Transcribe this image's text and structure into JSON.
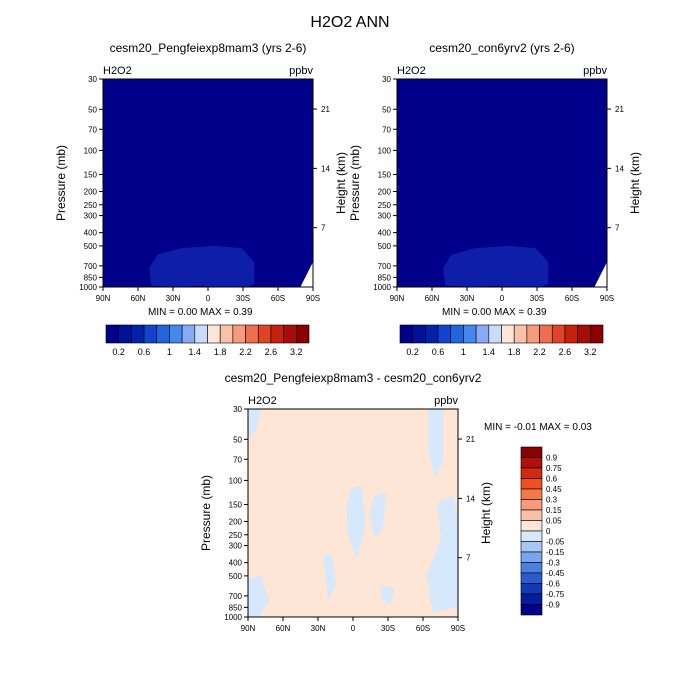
{
  "title": "H2O2 ANN",
  "chart_data": [
    {
      "type": "heatmap",
      "title": "cesm20_Pengfeiexp8mam3 (yrs 2-6)",
      "variable": "H2O2",
      "units": "ppbv",
      "ylabel": "Pressure (mb)",
      "ylabel_right": "Height (km)",
      "x_ticks": [
        "90N",
        "60N",
        "30N",
        "0",
        "30S",
        "60S",
        "90S"
      ],
      "y_ticks": [
        "30",
        "50",
        "70",
        "100",
        "150",
        "200",
        "250",
        "300",
        "400",
        "500",
        "700",
        "850",
        "1000"
      ],
      "y_ticks_right": [
        "21",
        "14",
        "7"
      ],
      "min": "0.00",
      "max": "0.39",
      "min_label": "MIN =",
      "max_label": "MAX =",
      "background_color": "#00008b",
      "feature_color": "#0d1fa8",
      "colorbar": {
        "orientation": "horizontal",
        "colors": [
          "#00008b",
          "#001199",
          "#0022aa",
          "#1144cc",
          "#2266dd",
          "#4488ee",
          "#88aaf4",
          "#c6dcf9",
          "#fde6d6",
          "#f9c2a6",
          "#f49c7c",
          "#ee6e50",
          "#e04426",
          "#c8200e",
          "#a80c06",
          "#8b0000"
        ],
        "labels": [
          "0.2",
          "0.6",
          "1",
          "1.4",
          "1.8",
          "2.2",
          "2.6",
          "3.2"
        ]
      }
    },
    {
      "type": "heatmap",
      "title": "cesm20_con6yrv2 (yrs 2-6)",
      "variable": "H2O2",
      "units": "ppbv",
      "ylabel": "Pressure (mb)",
      "ylabel_right": "Height (km)",
      "x_ticks": [
        "90N",
        "60N",
        "30N",
        "0",
        "30S",
        "60S",
        "90S"
      ],
      "y_ticks": [
        "30",
        "50",
        "70",
        "100",
        "150",
        "200",
        "250",
        "300",
        "400",
        "500",
        "700",
        "850",
        "1000"
      ],
      "y_ticks_right": [
        "21",
        "14",
        "7"
      ],
      "min": "0.00",
      "max": "0.39",
      "min_label": "MIN =",
      "max_label": "MAX =",
      "background_color": "#00008b",
      "feature_color": "#0d1fa8",
      "colorbar": {
        "orientation": "horizontal",
        "colors": [
          "#00008b",
          "#001199",
          "#0022aa",
          "#1144cc",
          "#2266dd",
          "#4488ee",
          "#88aaf4",
          "#c6dcf9",
          "#fde6d6",
          "#f9c2a6",
          "#f49c7c",
          "#ee6e50",
          "#e04426",
          "#c8200e",
          "#a80c06",
          "#8b0000"
        ],
        "labels": [
          "0.2",
          "0.6",
          "1",
          "1.4",
          "1.8",
          "2.2",
          "2.6",
          "3.2"
        ]
      }
    },
    {
      "type": "heatmap",
      "title": "cesm20_Pengfeiexp8mam3 - cesm20_con6yrv2",
      "variable": "H2O2",
      "units": "ppbv",
      "ylabel": "Pressure (mb)",
      "ylabel_right": "Height (km)",
      "x_ticks": [
        "90N",
        "60N",
        "30N",
        "0",
        "30S",
        "60S",
        "90S"
      ],
      "y_ticks": [
        "30",
        "50",
        "70",
        "100",
        "150",
        "200",
        "250",
        "300",
        "400",
        "500",
        "700",
        "850",
        "1000"
      ],
      "y_ticks_right": [
        "21",
        "14",
        "7"
      ],
      "min": "-0.01",
      "max": "0.03",
      "min_label": "MIN =",
      "max_label": "MAX =",
      "background_color": "#fde6d6",
      "feature_color": "#d6e8fb",
      "colorbar": {
        "orientation": "vertical",
        "colors": [
          "#8b0000",
          "#b01008",
          "#d02a10",
          "#ee5020",
          "#f47848",
          "#f69c7c",
          "#f9c0a6",
          "#fde6d6",
          "#d6e8fb",
          "#a8c8f4",
          "#7aa4ec",
          "#4c80e0",
          "#2a5cd0",
          "#1238b8",
          "#041ca0",
          "#00008b"
        ],
        "labels": [
          "0.9",
          "0.75",
          "0.6",
          "0.45",
          "0.3",
          "0.15",
          "0.05",
          "0",
          "-0.05",
          "-0.15",
          "-0.3",
          "-0.45",
          "-0.6",
          "-0.75",
          "-0.9"
        ]
      }
    }
  ]
}
